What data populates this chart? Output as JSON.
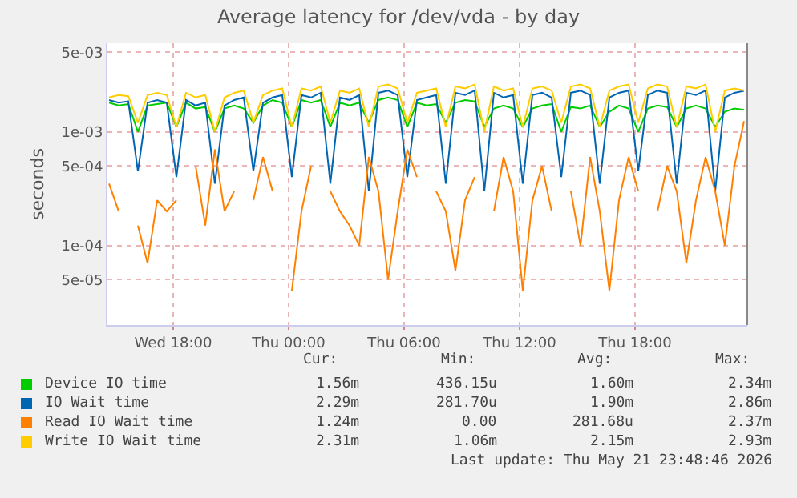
{
  "chart_data": {
    "type": "line",
    "title": "Average latency for /dev/vda - by day",
    "ylabel": "seconds",
    "log": "y",
    "grid": true,
    "legend": "bottom left",
    "x": [
      "2026-05-20T14:40",
      "2026-05-20T15:10",
      "2026-05-20T15:40",
      "2026-05-20T16:10",
      "2026-05-20T16:40",
      "2026-05-20T17:10",
      "2026-05-20T17:40",
      "2026-05-20T18:10",
      "2026-05-20T18:40",
      "2026-05-20T19:10",
      "2026-05-20T19:40",
      "2026-05-20T20:10",
      "2026-05-20T20:40",
      "2026-05-20T21:10",
      "2026-05-20T21:40",
      "2026-05-20T22:10",
      "2026-05-20T22:40",
      "2026-05-20T23:10",
      "2026-05-20T23:40",
      "2026-05-21T00:10",
      "2026-05-21T00:40",
      "2026-05-21T01:10",
      "2026-05-21T01:40",
      "2026-05-21T02:10",
      "2026-05-21T02:40",
      "2026-05-21T03:10",
      "2026-05-21T03:40",
      "2026-05-21T04:10",
      "2026-05-21T04:40",
      "2026-05-21T05:10",
      "2026-05-21T05:40",
      "2026-05-21T06:10",
      "2026-05-21T06:40",
      "2026-05-21T07:10",
      "2026-05-21T07:40",
      "2026-05-21T08:10",
      "2026-05-21T08:40",
      "2026-05-21T09:10",
      "2026-05-21T09:40",
      "2026-05-21T10:10",
      "2026-05-21T10:40",
      "2026-05-21T11:10",
      "2026-05-21T11:40",
      "2026-05-21T12:10",
      "2026-05-21T12:40",
      "2026-05-21T13:10",
      "2026-05-21T13:40",
      "2026-05-21T14:10",
      "2026-05-21T14:40",
      "2026-05-21T15:10",
      "2026-05-21T15:40",
      "2026-05-21T16:10",
      "2026-05-21T16:40",
      "2026-05-21T17:10",
      "2026-05-21T17:40",
      "2026-05-21T18:10",
      "2026-05-21T18:40",
      "2026-05-21T19:10",
      "2026-05-21T19:40",
      "2026-05-21T20:10",
      "2026-05-21T20:40",
      "2026-05-21T21:10",
      "2026-05-21T21:40",
      "2026-05-21T22:10",
      "2026-05-21T22:40",
      "2026-05-21T23:10",
      "2026-05-21T23:40"
    ],
    "xlim": [
      "2026-05-20T14:35",
      "2026-05-21T23:50"
    ],
    "xticks": [
      {
        "value": "2026-05-20T18:00",
        "label": "Wed 18:00"
      },
      {
        "value": "2026-05-21T00:00",
        "label": "Thu 00:00"
      },
      {
        "value": "2026-05-21T06:00",
        "label": "Thu 06:00"
      },
      {
        "value": "2026-05-21T12:00",
        "label": "Thu 12:00"
      },
      {
        "value": "2026-05-21T18:00",
        "label": "Thu 18:00"
      }
    ],
    "ylim": [
      2e-05,
      0.006
    ],
    "yticks": [
      {
        "value": 5e-05,
        "label": "5e-05"
      },
      {
        "value": 0.0001,
        "label": "1e-04"
      },
      {
        "value": 0.0005,
        "label": "5e-04"
      },
      {
        "value": 0.001,
        "label": "1e-03"
      },
      {
        "value": 0.005,
        "label": "5e-03"
      }
    ],
    "series": [
      {
        "name": "Device IO time",
        "color": "#00cc00",
        "values": [
          0.0018,
          0.0017,
          0.00175,
          0.001,
          0.0017,
          0.00175,
          0.0018,
          0.0011,
          0.0018,
          0.0016,
          0.00165,
          0.001,
          0.0016,
          0.0017,
          0.0016,
          0.0012,
          0.0017,
          0.0019,
          0.0018,
          0.0011,
          0.0019,
          0.0018,
          0.0019,
          0.0011,
          0.0018,
          0.0017,
          0.0018,
          0.0012,
          0.0019,
          0.002,
          0.0019,
          0.0011,
          0.0018,
          0.0017,
          0.00175,
          0.0012,
          0.0018,
          0.0019,
          0.00185,
          0.0011,
          0.0016,
          0.0017,
          0.0016,
          0.0011,
          0.0016,
          0.0017,
          0.00175,
          0.001,
          0.00165,
          0.0016,
          0.0017,
          0.0011,
          0.0015,
          0.0017,
          0.0016,
          0.001,
          0.0016,
          0.0017,
          0.00165,
          0.0011,
          0.0016,
          0.0017,
          0.0016,
          0.0011,
          0.0015,
          0.0016,
          0.00156
        ]
      },
      {
        "name": "IO Wait time",
        "color": "#0066b3",
        "values": [
          0.0019,
          0.0018,
          0.00185,
          0.00045,
          0.0018,
          0.0019,
          0.0018,
          0.0004,
          0.0019,
          0.0017,
          0.0018,
          0.00035,
          0.0017,
          0.0019,
          0.002,
          0.00045,
          0.0018,
          0.002,
          0.0021,
          0.0004,
          0.0021,
          0.002,
          0.0022,
          0.00035,
          0.002,
          0.0019,
          0.0021,
          0.0003,
          0.0022,
          0.0023,
          0.0021,
          0.0004,
          0.0019,
          0.002,
          0.0021,
          0.00035,
          0.0022,
          0.0021,
          0.0023,
          0.0003,
          0.0022,
          0.002,
          0.0021,
          0.00035,
          0.0021,
          0.0022,
          0.002,
          0.0004,
          0.0022,
          0.0023,
          0.0021,
          0.00035,
          0.002,
          0.0022,
          0.0023,
          0.00045,
          0.0021,
          0.0023,
          0.0022,
          0.00035,
          0.0022,
          0.0021,
          0.0023,
          0.0003,
          0.002,
          0.0022,
          0.00229
        ]
      },
      {
        "name": "Read IO Wait time",
        "color": "#ff8000",
        "values": [
          0.00035,
          0.0002,
          null,
          0.00015,
          7e-05,
          0.00025,
          0.0002,
          0.00025,
          null,
          0.0005,
          0.00015,
          0.0007,
          0.0002,
          0.0003,
          null,
          0.00025,
          0.0006,
          0.0003,
          null,
          4e-05,
          0.0002,
          0.0005,
          null,
          0.0003,
          0.0002,
          0.00015,
          0.0001,
          0.0006,
          0.0003,
          5e-05,
          0.0002,
          0.0007,
          0.0004,
          null,
          0.0003,
          0.0002,
          6e-05,
          0.00025,
          0.0004,
          null,
          0.0002,
          0.0006,
          0.0003,
          4e-05,
          0.00025,
          0.0005,
          0.0002,
          null,
          0.0003,
          0.0001,
          0.0006,
          0.0002,
          4e-05,
          0.00025,
          0.0006,
          0.0003,
          null,
          0.0002,
          0.0005,
          0.0003,
          7e-05,
          0.00025,
          0.0006,
          0.0003,
          0.0001,
          0.0005,
          0.00124
        ]
      },
      {
        "name": "Write IO Wait time",
        "color": "#ffcc00",
        "values": [
          0.002,
          0.0021,
          0.00205,
          0.0012,
          0.0021,
          0.0022,
          0.0021,
          0.0011,
          0.0022,
          0.002,
          0.0021,
          0.001,
          0.002,
          0.0022,
          0.0023,
          0.0012,
          0.0021,
          0.0023,
          0.0024,
          0.0011,
          0.0024,
          0.0023,
          0.0025,
          0.0012,
          0.0023,
          0.0022,
          0.0024,
          0.0011,
          0.0025,
          0.0026,
          0.0024,
          0.0012,
          0.0022,
          0.0023,
          0.0024,
          0.0011,
          0.0025,
          0.0024,
          0.0026,
          0.001,
          0.0025,
          0.0023,
          0.0024,
          0.0011,
          0.0024,
          0.0025,
          0.0023,
          0.0012,
          0.0025,
          0.0026,
          0.0024,
          0.0011,
          0.0023,
          0.0025,
          0.0026,
          0.0012,
          0.0024,
          0.0026,
          0.0025,
          0.0011,
          0.0025,
          0.0024,
          0.0026,
          0.001,
          0.0023,
          0.0024,
          0.00231
        ]
      }
    ],
    "annotations": [
      "Cur:",
      "Min:",
      "Avg:",
      "Max:",
      "1.56m",
      "436.15u",
      "1.60m",
      "2.34m",
      "2.29m",
      "281.70u",
      "1.90m",
      "2.86m",
      "1.24m",
      "0.00",
      "281.68u",
      "2.37m",
      "2.31m",
      "1.06m",
      "2.15m",
      "2.93m",
      "Last update: Thu May 21 23:48:46 2026"
    ]
  }
}
